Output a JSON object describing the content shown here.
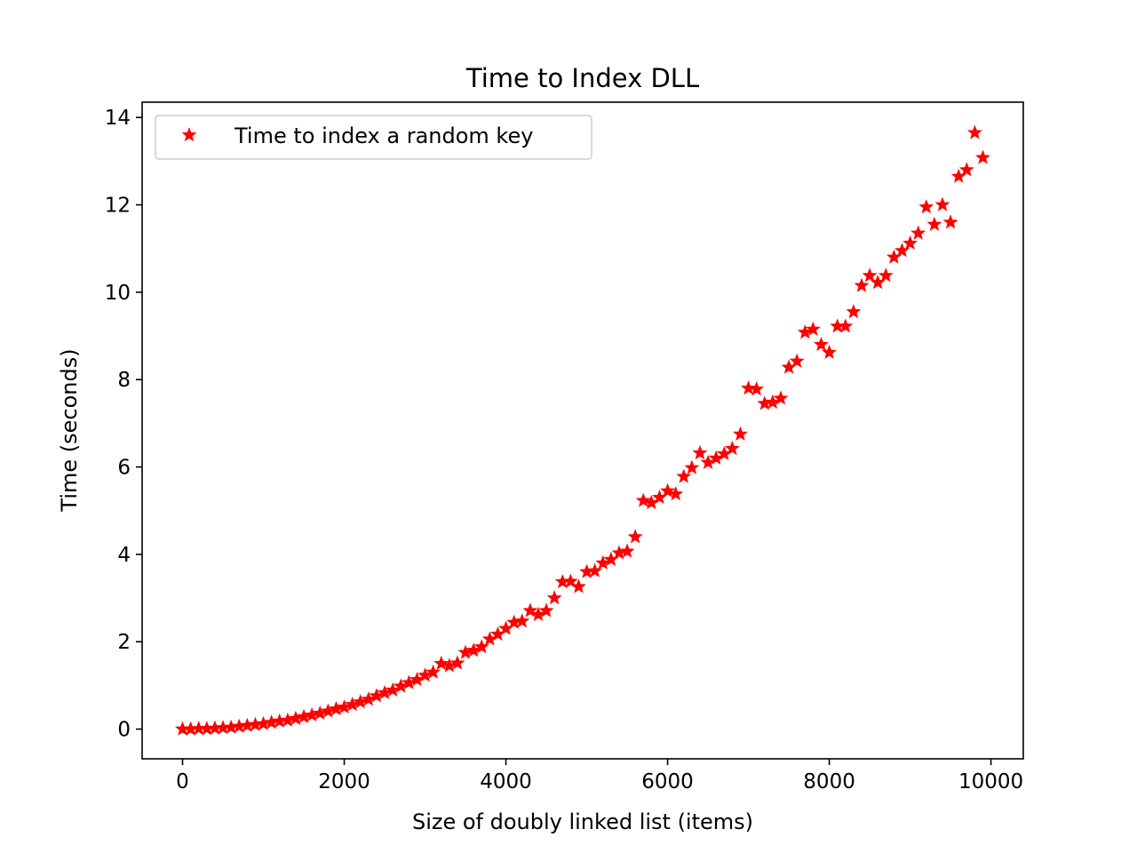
{
  "chart_data": {
    "type": "scatter",
    "title": "Time to Index DLL",
    "xlabel": "Size of doubly linked list (items)",
    "ylabel": "Time (seconds)",
    "xlim": [
      -500,
      10400
    ],
    "ylim": [
      -0.68,
      14.35
    ],
    "xticks": [
      0,
      2000,
      4000,
      6000,
      8000,
      10000
    ],
    "yticks": [
      0,
      2,
      4,
      6,
      8,
      10,
      12,
      14
    ],
    "grid": false,
    "legend": "top-left",
    "marker": "star",
    "color": "#ff0000",
    "series": [
      {
        "name": "Time to index a random key",
        "x": [
          0,
          100,
          200,
          300,
          400,
          500,
          600,
          700,
          800,
          900,
          1000,
          1100,
          1200,
          1300,
          1400,
          1500,
          1600,
          1700,
          1800,
          1900,
          2000,
          2100,
          2200,
          2300,
          2400,
          2500,
          2600,
          2700,
          2800,
          2900,
          3000,
          3100,
          3200,
          3300,
          3400,
          3500,
          3600,
          3700,
          3800,
          3900,
          4000,
          4100,
          4200,
          4300,
          4400,
          4500,
          4600,
          4700,
          4800,
          4900,
          5000,
          5100,
          5200,
          5300,
          5400,
          5500,
          5600,
          5700,
          5800,
          5900,
          6000,
          6100,
          6200,
          6300,
          6400,
          6500,
          6600,
          6700,
          6800,
          6900,
          7000,
          7100,
          7200,
          7300,
          7400,
          7500,
          7600,
          7700,
          7800,
          7900,
          8000,
          8100,
          8200,
          8300,
          8400,
          8500,
          8600,
          8700,
          8800,
          8900,
          9000,
          9100,
          9200,
          9300,
          9400,
          9500,
          9600,
          9700,
          9800,
          9900
        ],
        "y": [
          0.0,
          0.0,
          0.01,
          0.01,
          0.02,
          0.03,
          0.04,
          0.06,
          0.08,
          0.1,
          0.12,
          0.15,
          0.18,
          0.2,
          0.24,
          0.28,
          0.32,
          0.36,
          0.41,
          0.46,
          0.5,
          0.56,
          0.62,
          0.68,
          0.76,
          0.83,
          0.89,
          0.98,
          1.06,
          1.13,
          1.23,
          1.3,
          1.5,
          1.45,
          1.51,
          1.75,
          1.8,
          1.88,
          2.06,
          2.17,
          2.3,
          2.44,
          2.47,
          2.71,
          2.62,
          2.71,
          3.0,
          3.37,
          3.38,
          3.26,
          3.6,
          3.62,
          3.8,
          3.88,
          4.03,
          4.07,
          4.4,
          5.23,
          5.18,
          5.3,
          5.45,
          5.38,
          5.78,
          5.98,
          6.32,
          6.1,
          6.2,
          6.3,
          6.42,
          6.75,
          7.8,
          7.78,
          7.45,
          7.48,
          7.57,
          8.28,
          8.42,
          9.08,
          9.15,
          8.8,
          8.62,
          9.22,
          9.22,
          9.55,
          10.15,
          10.38,
          10.22,
          10.38,
          10.8,
          10.95,
          11.12,
          11.35,
          11.95,
          11.55,
          12.0,
          11.6,
          12.65,
          12.8,
          13.65,
          13.08
        ]
      }
    ]
  }
}
